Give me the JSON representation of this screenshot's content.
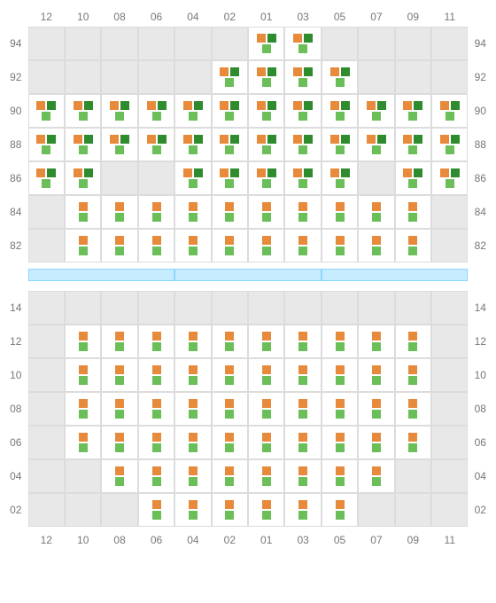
{
  "colors": {
    "empty_bg": "#e8e8e8",
    "avail_bg": "#ffffff",
    "grid_border": "#dcdcdc",
    "label_color": "#777777",
    "mark_orange": "#e88a3c",
    "mark_dark_green": "#2e8b2e",
    "mark_light_green": "#6bbf59",
    "divider_bg": "#c7ebff",
    "divider_border": "#8ad4ff"
  },
  "columns": [
    "12",
    "10",
    "08",
    "06",
    "04",
    "02",
    "01",
    "03",
    "05",
    "07",
    "09",
    "11"
  ],
  "upper": {
    "row_labels": [
      "94",
      "92",
      "90",
      "88",
      "86",
      "84",
      "82"
    ],
    "pattern_legend": {
      "0": "empty",
      "A": "orange+dgreen top, lgreen bottom",
      "B": "orange top, lgreen bottom"
    },
    "rows": [
      [
        "0",
        "0",
        "0",
        "0",
        "0",
        "0",
        "A",
        "A",
        "0",
        "0",
        "0",
        "0"
      ],
      [
        "0",
        "0",
        "0",
        "0",
        "0",
        "A",
        "A",
        "A",
        "A",
        "0",
        "0",
        "0"
      ],
      [
        "A",
        "A",
        "A",
        "A",
        "A",
        "A",
        "A",
        "A",
        "A",
        "A",
        "A",
        "A"
      ],
      [
        "A",
        "A",
        "A",
        "A",
        "A",
        "A",
        "A",
        "A",
        "A",
        "A",
        "A",
        "A"
      ],
      [
        "A",
        "A",
        "0",
        "0",
        "A",
        "A",
        "A",
        "A",
        "A",
        "0",
        "A",
        "A"
      ],
      [
        "0",
        "B",
        "B",
        "B",
        "B",
        "B",
        "B",
        "B",
        "B",
        "B",
        "B",
        "0"
      ],
      [
        "0",
        "B",
        "B",
        "B",
        "B",
        "B",
        "B",
        "B",
        "B",
        "B",
        "B",
        "0"
      ]
    ]
  },
  "divider_segments": 3,
  "lower": {
    "row_labels": [
      "14",
      "12",
      "10",
      "08",
      "06",
      "04",
      "02"
    ],
    "rows": [
      [
        "0",
        "0",
        "0",
        "0",
        "0",
        "0",
        "0",
        "0",
        "0",
        "0",
        "0",
        "0"
      ],
      [
        "0",
        "B",
        "B",
        "B",
        "B",
        "B",
        "B",
        "B",
        "B",
        "B",
        "B",
        "0"
      ],
      [
        "0",
        "B",
        "B",
        "B",
        "B",
        "B",
        "B",
        "B",
        "B",
        "B",
        "B",
        "0"
      ],
      [
        "0",
        "B",
        "B",
        "B",
        "B",
        "B",
        "B",
        "B",
        "B",
        "B",
        "B",
        "0"
      ],
      [
        "0",
        "B",
        "B",
        "B",
        "B",
        "B",
        "B",
        "B",
        "B",
        "B",
        "B",
        "0"
      ],
      [
        "0",
        "0",
        "B",
        "B",
        "B",
        "B",
        "B",
        "B",
        "B",
        "B",
        "0",
        "0"
      ],
      [
        "0",
        "0",
        "0",
        "B",
        "B",
        "B",
        "B",
        "B",
        "B",
        "0",
        "0",
        "0"
      ]
    ]
  }
}
